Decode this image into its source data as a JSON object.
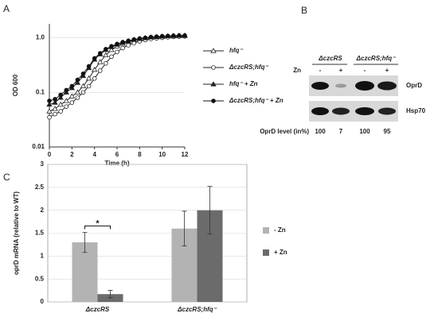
{
  "panels": [
    "A",
    "B",
    "C"
  ],
  "chart_data": [
    {
      "type": "line",
      "x_label": "Time (h)",
      "y_label": "OD 600",
      "log_y": true,
      "grid": true,
      "x": [
        0,
        0.5,
        1,
        1.5,
        2,
        2.5,
        3,
        3.5,
        4,
        4.5,
        5,
        5.5,
        6,
        6.5,
        7,
        7.5,
        8,
        8.5,
        9,
        9.5,
        10,
        10.5,
        11,
        11.5,
        12
      ],
      "xlim": [
        0,
        12
      ],
      "xticks": [
        0,
        2,
        4,
        6,
        8,
        10,
        12
      ],
      "ylim": [
        0.01,
        1.8
      ],
      "yticks": [
        0.01,
        0.1,
        {
          "value": 1,
          "label": "1.0"
        }
      ],
      "series": [
        {
          "name": "hfq⁻",
          "color": "#222222",
          "marker": "triangle-open",
          "values": [
            0.045,
            0.05,
            0.06,
            0.07,
            0.085,
            0.1,
            0.13,
            0.18,
            0.26,
            0.36,
            0.48,
            0.6,
            0.7,
            0.78,
            0.85,
            0.9,
            0.94,
            0.97,
            1.0,
            1.02,
            1.04,
            1.06,
            1.07,
            1.08,
            1.09
          ]
        },
        {
          "name": "ΔczcRS;hfq⁻",
          "color": "#222222",
          "marker": "circle-open",
          "values": [
            0.035,
            0.04,
            0.045,
            0.055,
            0.065,
            0.08,
            0.1,
            0.13,
            0.18,
            0.25,
            0.34,
            0.45,
            0.55,
            0.65,
            0.73,
            0.8,
            0.86,
            0.91,
            0.95,
            0.98,
            1.0,
            1.02,
            1.04,
            1.05,
            1.06
          ]
        },
        {
          "name": "hfq⁻ + Zn",
          "color": "#222222",
          "marker": "triangle-filled",
          "values": [
            0.06,
            0.065,
            0.08,
            0.1,
            0.12,
            0.15,
            0.2,
            0.28,
            0.4,
            0.5,
            0.6,
            0.68,
            0.75,
            0.82,
            0.87,
            0.92,
            0.96,
            0.99,
            1.02,
            1.04,
            1.06,
            1.08,
            1.09,
            1.1,
            1.1
          ]
        },
        {
          "name": "ΔczcRS;hfq⁻ + Zn",
          "color": "#111111",
          "marker": "circle-filled",
          "values": [
            0.07,
            0.075,
            0.09,
            0.11,
            0.13,
            0.17,
            0.22,
            0.3,
            0.42,
            0.52,
            0.62,
            0.7,
            0.77,
            0.83,
            0.88,
            0.93,
            0.97,
            1.0,
            1.03,
            1.05,
            1.07,
            1.08,
            1.09,
            1.1,
            1.1
          ]
        }
      ]
    },
    {
      "type": "bar",
      "y_label": "oprD mRNA (relative to WT)",
      "grid": true,
      "categories": [
        "ΔczcRS",
        "ΔczcRS;hfq⁻"
      ],
      "ylim": [
        0,
        3
      ],
      "yticks": [
        0,
        0.5,
        1,
        1.5,
        2,
        2.5,
        3
      ],
      "annotation": "*",
      "series": [
        {
          "name": "- Zn",
          "color": "#b3b3b3",
          "values": [
            1.3,
            1.6
          ],
          "errors": [
            0.22,
            0.38
          ]
        },
        {
          "name": "+ Zn",
          "color": "#6b6b6b",
          "values": [
            0.17,
            2.0
          ],
          "errors": [
            0.08,
            0.52
          ]
        }
      ]
    }
  ],
  "blot": {
    "strains": [
      "ΔczcRS",
      "ΔczcRS;hfq⁻"
    ],
    "treatment": "Zn",
    "lanes": [
      "-",
      "+",
      "-",
      "+"
    ],
    "rows": [
      "OprD",
      "Hsp70"
    ],
    "level_label": "OprD level (in%)",
    "levels": [
      "100",
      "7",
      "100",
      "95"
    ]
  }
}
